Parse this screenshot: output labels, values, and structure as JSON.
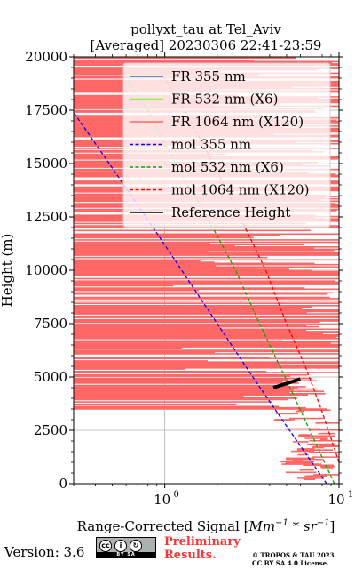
{
  "chart_data": {
    "type": "line",
    "title": "pollyxt_tau at Tel_Aviv",
    "subtitle": "[Averaged] 20230306 22:41-23:59",
    "xlabel": "Range-Corrected Signal [",
    "xlabel_math": "Mm",
    "xlabel_exp1": "−1",
    "xlabel_mid": " * sr",
    "xlabel_exp2": "−1",
    "xlabel_end": "]",
    "ylabel": "Height (m)",
    "xscale": "log",
    "xlim": [
      0.3,
      10
    ],
    "ylim": [
      0,
      20000
    ],
    "x_ticks": [
      {
        "value": 1,
        "base": "10",
        "exp": "0"
      },
      {
        "value": 10,
        "base": "10",
        "exp": "1"
      }
    ],
    "y_ticks": [
      0,
      2500,
      5000,
      7500,
      10000,
      12500,
      15000,
      17500,
      20000
    ],
    "y_tick_labels": [
      "0",
      "2500",
      "5000",
      "7500",
      "10000",
      "12500",
      "15000",
      "17500",
      "20000"
    ],
    "grid": true,
    "legend_position": "top-right",
    "legend": [
      {
        "name": "FR 355 nm",
        "color": "#1f77b4",
        "style": "solid"
      },
      {
        "name": "FR 532 nm (X6)",
        "color": "#90ee40",
        "style": "solid"
      },
      {
        "name": "FR 1064 nm (X120)",
        "color": "#ff6666",
        "style": "solid"
      },
      {
        "name": "mol 355 nm",
        "color": "#0000ff",
        "style": "dashed"
      },
      {
        "name": "mol 532 nm (X6)",
        "color": "#00aa00",
        "style": "dashed"
      },
      {
        "name": "mol 1064 nm (X120)",
        "color": "#ff0000",
        "style": "dashed"
      },
      {
        "name": "Reference Height",
        "color": "#000000",
        "style": "solid"
      }
    ],
    "series": [
      {
        "name": "mol 355 nm",
        "x": [
          8.5,
          5.2,
          3.2,
          2.0,
          1.25,
          0.78,
          0.48,
          0.3
        ],
        "y": [
          0,
          2500,
          5000,
          7500,
          10000,
          12500,
          15000,
          17400
        ]
      },
      {
        "name": "mol 532 nm (X6)",
        "x": [
          9.4,
          6.8,
          4.9,
          3.5,
          2.55,
          1.75,
          1.15,
          0.8,
          0.6
        ],
        "y": [
          0,
          2500,
          5000,
          7500,
          10000,
          12500,
          15000,
          17500,
          19000
        ]
      },
      {
        "name": "mol 1064 nm (X120)",
        "x": [
          10,
          7.9,
          6.4,
          5.0,
          3.8,
          2.7,
          1.9,
          1.3,
          1.0
        ],
        "y": [
          1000,
          3500,
          5500,
          7500,
          10000,
          12500,
          15000,
          17500,
          19000
        ]
      },
      {
        "name": "Reference Height",
        "x": [
          4.2,
          6.0
        ],
        "y": [
          4500,
          4900
        ]
      }
    ]
  },
  "footer": {
    "version": "Version: 3.6",
    "badge": "BY SA",
    "preliminary": [
      "Preliminary",
      "Results."
    ],
    "copyright": [
      "© TROPOS & TAU 2023.",
      "CC BY SA 4.0 License."
    ]
  }
}
